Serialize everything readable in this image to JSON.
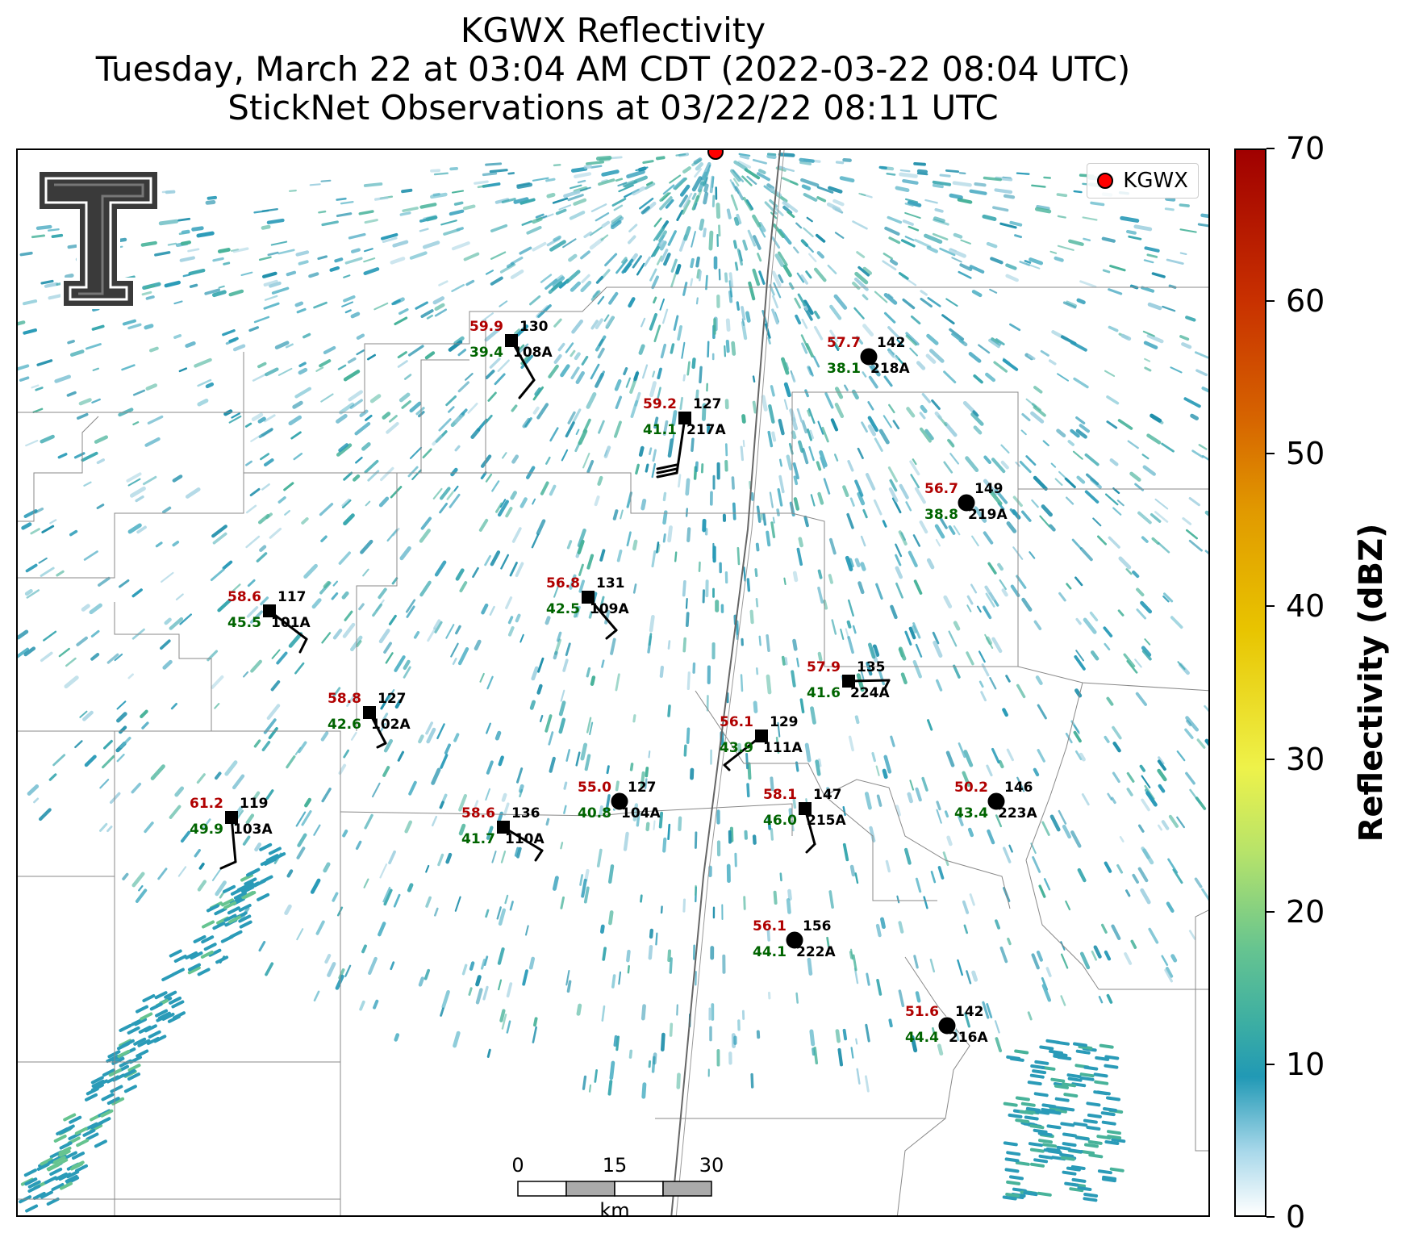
{
  "title": {
    "line1": "KGWX Reflectivity",
    "line2": "Tuesday, March 22 at 03:04 AM CDT (2022-03-22 08:04 UTC)",
    "line3": "StickNet Observations at 03/22/22 08:11 UTC"
  },
  "legend": {
    "label": "KGWX",
    "marker_color": "#ff0000"
  },
  "colorbar": {
    "title": "Reflectivity (dBZ)",
    "ticks": [
      "70",
      "60",
      "50",
      "40",
      "30",
      "20",
      "10",
      "0"
    ]
  },
  "scale_bar": {
    "labels": [
      "0",
      "15",
      "30"
    ],
    "unit": "km"
  },
  "colors": {
    "temperature": "#b00000",
    "dewpoint": "#006400",
    "radar_site": "#ff0000"
  },
  "stations": [
    {
      "id": "108A",
      "temp": "59.9",
      "dew": "39.4",
      "dir": "130",
      "marker": "square"
    },
    {
      "id": "218A",
      "temp": "57.7",
      "dew": "38.1",
      "dir": "142",
      "marker": "circle"
    },
    {
      "id": "217A",
      "temp": "59.2",
      "dew": "41.1",
      "dir": "127",
      "marker": "square"
    },
    {
      "id": "219A",
      "temp": "56.7",
      "dew": "38.8",
      "dir": "149",
      "marker": "circle"
    },
    {
      "id": "109A",
      "temp": "56.8",
      "dew": "42.5",
      "dir": "131",
      "marker": "square"
    },
    {
      "id": "101A",
      "temp": "58.6",
      "dew": "45.5",
      "dir": "117",
      "marker": "square"
    },
    {
      "id": "224A",
      "temp": "57.9",
      "dew": "41.6",
      "dir": "135",
      "marker": "square"
    },
    {
      "id": "102A",
      "temp": "58.8",
      "dew": "42.6",
      "dir": "127",
      "marker": "square"
    },
    {
      "id": "111A",
      "temp": "56.1",
      "dew": "43.9",
      "dir": "129",
      "marker": "square"
    },
    {
      "id": "104A",
      "temp": "55.0",
      "dew": "40.8",
      "dir": "127",
      "marker": "circle"
    },
    {
      "id": "103A",
      "temp": "61.2",
      "dew": "49.9",
      "dir": "119",
      "marker": "square"
    },
    {
      "id": "110A",
      "temp": "58.6",
      "dew": "41.7",
      "dir": "136",
      "marker": "square"
    },
    {
      "id": "215A",
      "temp": "58.1",
      "dew": "46.0",
      "dir": "147",
      "marker": "square"
    },
    {
      "id": "223A",
      "temp": "50.2",
      "dew": "43.4",
      "dir": "146",
      "marker": "circle"
    },
    {
      "id": "222A",
      "temp": "56.1",
      "dew": "44.1",
      "dir": "156",
      "marker": "circle"
    },
    {
      "id": "216A",
      "temp": "51.6",
      "dew": "44.4",
      "dir": "142",
      "marker": "circle"
    }
  ]
}
